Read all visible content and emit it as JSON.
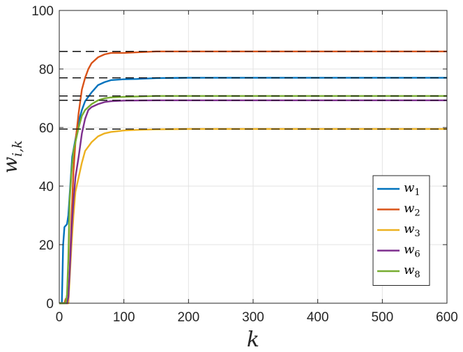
{
  "chart_data": {
    "type": "line",
    "xlabel": "k",
    "ylabel": {
      "base": "w",
      "sub": "i,k"
    },
    "xlim": [
      0,
      600
    ],
    "ylim": [
      0,
      100
    ],
    "xticks": [
      0,
      100,
      200,
      300,
      400,
      500,
      600
    ],
    "yticks": [
      0,
      20,
      40,
      60,
      80,
      100
    ],
    "xtick_labels": [
      "0",
      "100",
      "200",
      "300",
      "400",
      "500",
      "600"
    ],
    "ytick_labels": [
      "0",
      "20",
      "40",
      "60",
      "80",
      "100"
    ],
    "grid": true,
    "legend_position": "right",
    "reference_lines": [
      {
        "y": 86,
        "color": "#000000",
        "style": "dashed"
      },
      {
        "y": 77,
        "color": "#000000",
        "style": "dashed"
      },
      {
        "y": 70.8,
        "color": "#000000",
        "style": "dashed"
      },
      {
        "y": 69.3,
        "color": "#000000",
        "style": "dashed"
      },
      {
        "y": 59.5,
        "color": "#000000",
        "style": "dashed"
      }
    ],
    "series": [
      {
        "name": "w",
        "sub": "1",
        "color": "#0072BD",
        "points": [
          [
            0,
            0
          ],
          [
            4,
            0
          ],
          [
            6,
            20
          ],
          [
            8,
            26
          ],
          [
            10,
            26.5
          ],
          [
            12,
            27
          ],
          [
            14,
            30
          ],
          [
            17,
            40
          ],
          [
            20,
            50
          ],
          [
            25,
            56
          ],
          [
            30,
            62
          ],
          [
            35,
            66
          ],
          [
            40,
            69
          ],
          [
            50,
            72
          ],
          [
            60,
            74.5
          ],
          [
            70,
            75.5
          ],
          [
            80,
            76.2
          ],
          [
            100,
            76.5
          ],
          [
            120,
            76.6
          ],
          [
            150,
            76.9
          ],
          [
            200,
            77
          ],
          [
            300,
            77
          ],
          [
            400,
            77
          ],
          [
            500,
            77
          ],
          [
            600,
            77
          ]
        ]
      },
      {
        "name": "w",
        "sub": "2",
        "color": "#D95319",
        "points": [
          [
            0,
            0
          ],
          [
            8,
            0
          ],
          [
            10,
            1.5
          ],
          [
            12,
            0
          ],
          [
            14,
            0
          ],
          [
            16,
            10
          ],
          [
            19,
            30
          ],
          [
            22,
            45
          ],
          [
            25,
            55
          ],
          [
            30,
            65
          ],
          [
            35,
            73
          ],
          [
            40,
            77
          ],
          [
            45,
            80
          ],
          [
            50,
            82
          ],
          [
            60,
            84
          ],
          [
            70,
            85
          ],
          [
            80,
            85.5
          ],
          [
            100,
            85.5
          ],
          [
            120,
            85.7
          ],
          [
            150,
            86
          ],
          [
            200,
            86
          ],
          [
            300,
            86
          ],
          [
            400,
            86
          ],
          [
            500,
            86
          ],
          [
            600,
            86
          ]
        ]
      },
      {
        "name": "w",
        "sub": "3",
        "color": "#EDB120",
        "points": [
          [
            0,
            0
          ],
          [
            14,
            0
          ],
          [
            16,
            8
          ],
          [
            19,
            20
          ],
          [
            22,
            30
          ],
          [
            25,
            38
          ],
          [
            30,
            43
          ],
          [
            35,
            48
          ],
          [
            40,
            52
          ],
          [
            50,
            55
          ],
          [
            60,
            57
          ],
          [
            70,
            58
          ],
          [
            80,
            58.5
          ],
          [
            100,
            59
          ],
          [
            120,
            59.2
          ],
          [
            150,
            59.4
          ],
          [
            200,
            59.5
          ],
          [
            300,
            59.5
          ],
          [
            400,
            59.5
          ],
          [
            500,
            59.5
          ],
          [
            600,
            59.5
          ]
        ]
      },
      {
        "name": "w",
        "sub": "6",
        "color": "#7E2F8E",
        "points": [
          [
            0,
            0
          ],
          [
            12,
            0
          ],
          [
            14,
            2
          ],
          [
            16,
            10
          ],
          [
            19,
            25
          ],
          [
            22,
            35
          ],
          [
            25,
            43
          ],
          [
            30,
            50
          ],
          [
            35,
            58
          ],
          [
            40,
            63
          ],
          [
            45,
            66
          ],
          [
            50,
            67
          ],
          [
            60,
            68
          ],
          [
            70,
            68.7
          ],
          [
            80,
            69
          ],
          [
            100,
            69.2
          ],
          [
            150,
            69.3
          ],
          [
            200,
            69.3
          ],
          [
            300,
            69.3
          ],
          [
            400,
            69.3
          ],
          [
            500,
            69.3
          ],
          [
            600,
            69.3
          ]
        ]
      },
      {
        "name": "w",
        "sub": "8",
        "color": "#77AC30",
        "points": [
          [
            0,
            0
          ],
          [
            10,
            0
          ],
          [
            12,
            3
          ],
          [
            14,
            15
          ],
          [
            16,
            35
          ],
          [
            19,
            45
          ],
          [
            22,
            52
          ],
          [
            25,
            55
          ],
          [
            30,
            60
          ],
          [
            35,
            64
          ],
          [
            40,
            66
          ],
          [
            50,
            68
          ],
          [
            60,
            69.3
          ],
          [
            70,
            70
          ],
          [
            80,
            70.3
          ],
          [
            100,
            70.5
          ],
          [
            150,
            70.8
          ],
          [
            200,
            70.8
          ],
          [
            300,
            70.8
          ],
          [
            400,
            70.8
          ],
          [
            500,
            70.8
          ],
          [
            600,
            70.8
          ]
        ]
      }
    ]
  }
}
